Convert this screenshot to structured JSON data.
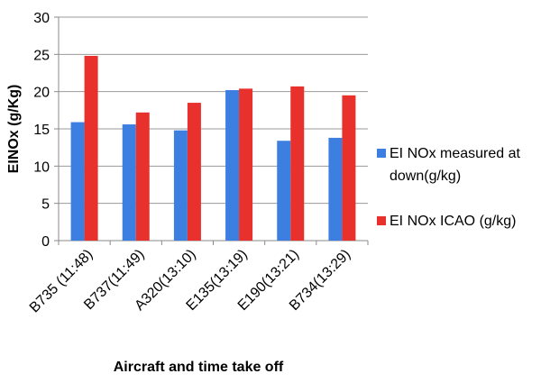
{
  "chart_data": {
    "type": "bar",
    "title": "",
    "xlabel": "Aircraft and time take off",
    "ylabel": "EINOx (g/Kg)",
    "ylim": [
      0,
      30
    ],
    "yticks": [
      0,
      5,
      10,
      15,
      20,
      25,
      30
    ],
    "grid": true,
    "legend_position": "right",
    "categories": [
      "B735 (11:48)",
      "B737(11:49)",
      "A320(13:10)",
      "E135(13:19)",
      "E190(13:21)",
      "B734(13:29)"
    ],
    "series": [
      {
        "name": "EI NOx measured at down(g/kg)",
        "legend_lines": [
          "EI NOx measured at",
          "down(g/kg)"
        ],
        "color": "#3d7fe0",
        "values": [
          15.9,
          15.6,
          14.8,
          20.2,
          13.4,
          13.8
        ]
      },
      {
        "name": "EI NOx ICAO (g/kg)",
        "legend_lines": [
          "EI NOx ICAO (g/kg)"
        ],
        "color": "#e8302c",
        "values": [
          24.8,
          17.2,
          18.5,
          20.4,
          20.7,
          19.5
        ]
      }
    ]
  }
}
